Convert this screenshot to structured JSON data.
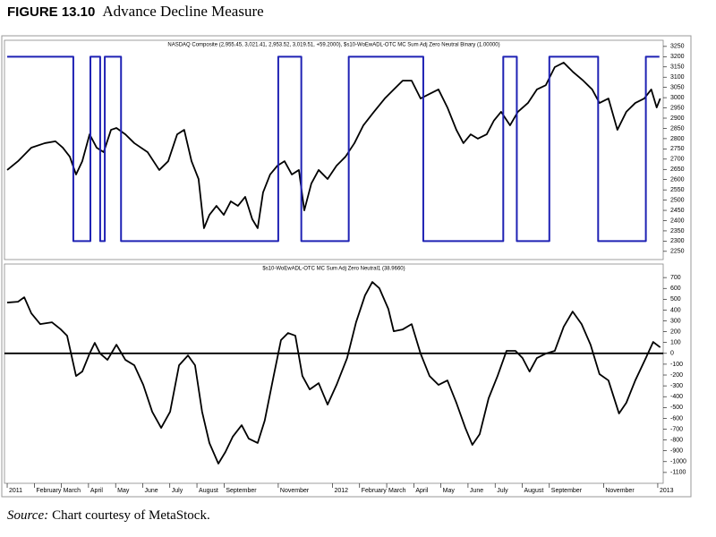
{
  "figure": {
    "label": "FIGURE 13.10",
    "title": "Advance Decline Measure"
  },
  "source": {
    "label": "Source:",
    "text": "Chart courtesy of MetaStock."
  },
  "chart_data": [
    {
      "type": "line",
      "title": "NASDAQ Composite (2,955.45, 3,021.41, 2,953.52, 3,019.51, +59.2000), $s10-WoEwADL-OTC MC Sum Adj Zero Neutral Binary (1.00000)",
      "xlim": [
        -0.1,
        24.2
      ],
      "ylim": [
        2210,
        3280
      ],
      "yticks": [
        2250,
        2300,
        2350,
        2400,
        2450,
        2500,
        2550,
        2600,
        2650,
        2700,
        2750,
        2800,
        2850,
        2900,
        2950,
        3000,
        3050,
        3100,
        3150,
        3200,
        3250
      ],
      "series": [
        {
          "color": "#000000",
          "x": [
            0,
            0.4,
            0.89,
            1.39,
            1.78,
            2.05,
            2.31,
            2.54,
            2.77,
            3.04,
            3.3,
            3.56,
            3.83,
            4.03,
            4.36,
            4.69,
            5.18,
            5.61,
            5.94,
            6.27,
            6.53,
            6.8,
            7.06,
            7.26,
            7.46,
            7.72,
            7.99,
            8.25,
            8.51,
            8.78,
            9.04,
            9.24,
            9.44,
            9.7,
            9.97,
            10.23,
            10.5,
            10.76,
            10.96,
            11.22,
            11.49,
            11.82,
            12.15,
            12.48,
            12.81,
            13.14,
            13.53,
            13.93,
            14.26,
            14.59,
            14.92,
            15.25,
            15.58,
            15.91,
            16.24,
            16.57,
            16.83,
            17.1,
            17.36,
            17.69,
            17.95,
            18.22,
            18.55,
            18.84,
            19.21,
            19.54,
            19.87,
            20.2,
            20.53,
            20.86,
            21.25,
            21.58,
            21.85,
            22.18,
            22.51,
            22.84,
            23.17,
            23.5,
            23.76,
            23.96,
            24.09
          ],
          "values": [
            2647,
            2690,
            2756,
            2778,
            2787,
            2756,
            2712,
            2625,
            2690,
            2821,
            2756,
            2734,
            2843,
            2852,
            2821,
            2778,
            2734,
            2647,
            2690,
            2821,
            2843,
            2690,
            2603,
            2363,
            2428,
            2472,
            2428,
            2494,
            2472,
            2516,
            2407,
            2363,
            2538,
            2625,
            2668,
            2690,
            2625,
            2647,
            2450,
            2581,
            2647,
            2603,
            2668,
            2712,
            2778,
            2865,
            2931,
            2996,
            3040,
            3083,
            3083,
            2996,
            3018,
            3040,
            2952,
            2843,
            2778,
            2821,
            2800,
            2821,
            2887,
            2931,
            2865,
            2931,
            2974,
            3040,
            3061,
            3149,
            3171,
            3127,
            3083,
            3040,
            2974,
            2996,
            2843,
            2931,
            2974,
            2996,
            3040,
            2952,
            2996
          ]
        },
        {
          "color": "#1f22b4",
          "x": [
            0,
            2.44,
            2.44,
            3.07,
            3.07,
            3.43,
            3.43,
            3.6,
            3.6,
            4.2,
            4.2,
            10.0,
            10.0,
            10.85,
            10.85,
            12.6,
            12.6,
            15.35,
            15.35,
            18.3,
            18.3,
            18.8,
            18.8,
            20.0,
            20.0,
            21.8,
            21.8,
            23.56,
            23.56,
            24.06
          ],
          "values": [
            3200,
            3200,
            2300,
            2300,
            3200,
            3200,
            2300,
            2300,
            3200,
            3200,
            2300,
            2300,
            3200,
            3200,
            2300,
            2300,
            3200,
            3200,
            2300,
            2300,
            3200,
            3200,
            2300,
            2300,
            3200,
            3200,
            2300,
            2300,
            3200,
            3200
          ]
        }
      ]
    },
    {
      "type": "line",
      "title": "$s10-WoEwADL-OTC MC Sum Adj Zero Neutral1 (38.9660)",
      "xlim": [
        -0.1,
        24.2
      ],
      "ylim": [
        -1200,
        825
      ],
      "yticks": [
        -1100,
        -1000,
        -900,
        -800,
        -700,
        -600,
        -500,
        -400,
        -300,
        -200,
        -100,
        0,
        100,
        200,
        300,
        400,
        500,
        600,
        700
      ],
      "hline": 0,
      "xticks": [
        {
          "value": 0,
          "label": "2011"
        },
        {
          "value": 1,
          "label": "February"
        },
        {
          "value": 2,
          "label": "March"
        },
        {
          "value": 3,
          "label": "April"
        },
        {
          "value": 4,
          "label": "May"
        },
        {
          "value": 5,
          "label": "June"
        },
        {
          "value": 6,
          "label": "July"
        },
        {
          "value": 7,
          "label": "August"
        },
        {
          "value": 8,
          "label": "September"
        },
        {
          "value": 10,
          "label": "November"
        },
        {
          "value": 12,
          "label": "2012"
        },
        {
          "value": 13,
          "label": "February"
        },
        {
          "value": 14,
          "label": "March"
        },
        {
          "value": 15,
          "label": "April"
        },
        {
          "value": 16,
          "label": "May"
        },
        {
          "value": 17,
          "label": "June"
        },
        {
          "value": 18,
          "label": "July"
        },
        {
          "value": 19,
          "label": "August"
        },
        {
          "value": 20,
          "label": "September"
        },
        {
          "value": 22,
          "label": "November"
        },
        {
          "value": 24,
          "label": "2013"
        }
      ],
      "series": [
        {
          "color": "#000000",
          "x": [
            0,
            0.4,
            0.63,
            0.89,
            1.22,
            1.65,
            1.98,
            2.21,
            2.54,
            2.77,
            3.04,
            3.23,
            3.43,
            3.7,
            4.03,
            4.36,
            4.69,
            5.02,
            5.35,
            5.68,
            6.01,
            6.34,
            6.67,
            6.93,
            7.19,
            7.46,
            7.79,
            8.05,
            8.32,
            8.65,
            8.91,
            9.24,
            9.5,
            9.83,
            10.1,
            10.36,
            10.63,
            10.89,
            11.16,
            11.49,
            11.82,
            12.15,
            12.54,
            12.87,
            13.2,
            13.47,
            13.73,
            14.06,
            14.26,
            14.59,
            14.92,
            15.25,
            15.58,
            15.91,
            16.24,
            16.57,
            16.9,
            17.16,
            17.43,
            17.76,
            18.09,
            18.42,
            18.75,
            19.01,
            19.27,
            19.54,
            19.87,
            20.2,
            20.53,
            20.86,
            21.19,
            21.52,
            21.85,
            22.18,
            22.57,
            22.84,
            23.17,
            23.56,
            23.83,
            24.09
          ],
          "values": [
            469,
            477,
            518,
            370,
            270,
            287,
            221,
            163,
            -209,
            -168,
            -2,
            97,
            -2,
            -60,
            80,
            -60,
            -110,
            -291,
            -539,
            -688,
            -539,
            -110,
            -19,
            -110,
            -539,
            -828,
            -1018,
            -911,
            -770,
            -663,
            -787,
            -828,
            -621,
            -209,
            122,
            188,
            163,
            -209,
            -333,
            -275,
            -473,
            -291,
            -43,
            287,
            535,
            659,
            601,
            411,
            204,
            221,
            270,
            -2,
            -209,
            -291,
            -250,
            -456,
            -688,
            -845,
            -746,
            -415,
            -209,
            23,
            23,
            -43,
            -168,
            -43,
            -2,
            23,
            246,
            386,
            270,
            80,
            -192,
            -250,
            -555,
            -456,
            -250,
            -43,
            105,
            56
          ]
        }
      ]
    }
  ]
}
